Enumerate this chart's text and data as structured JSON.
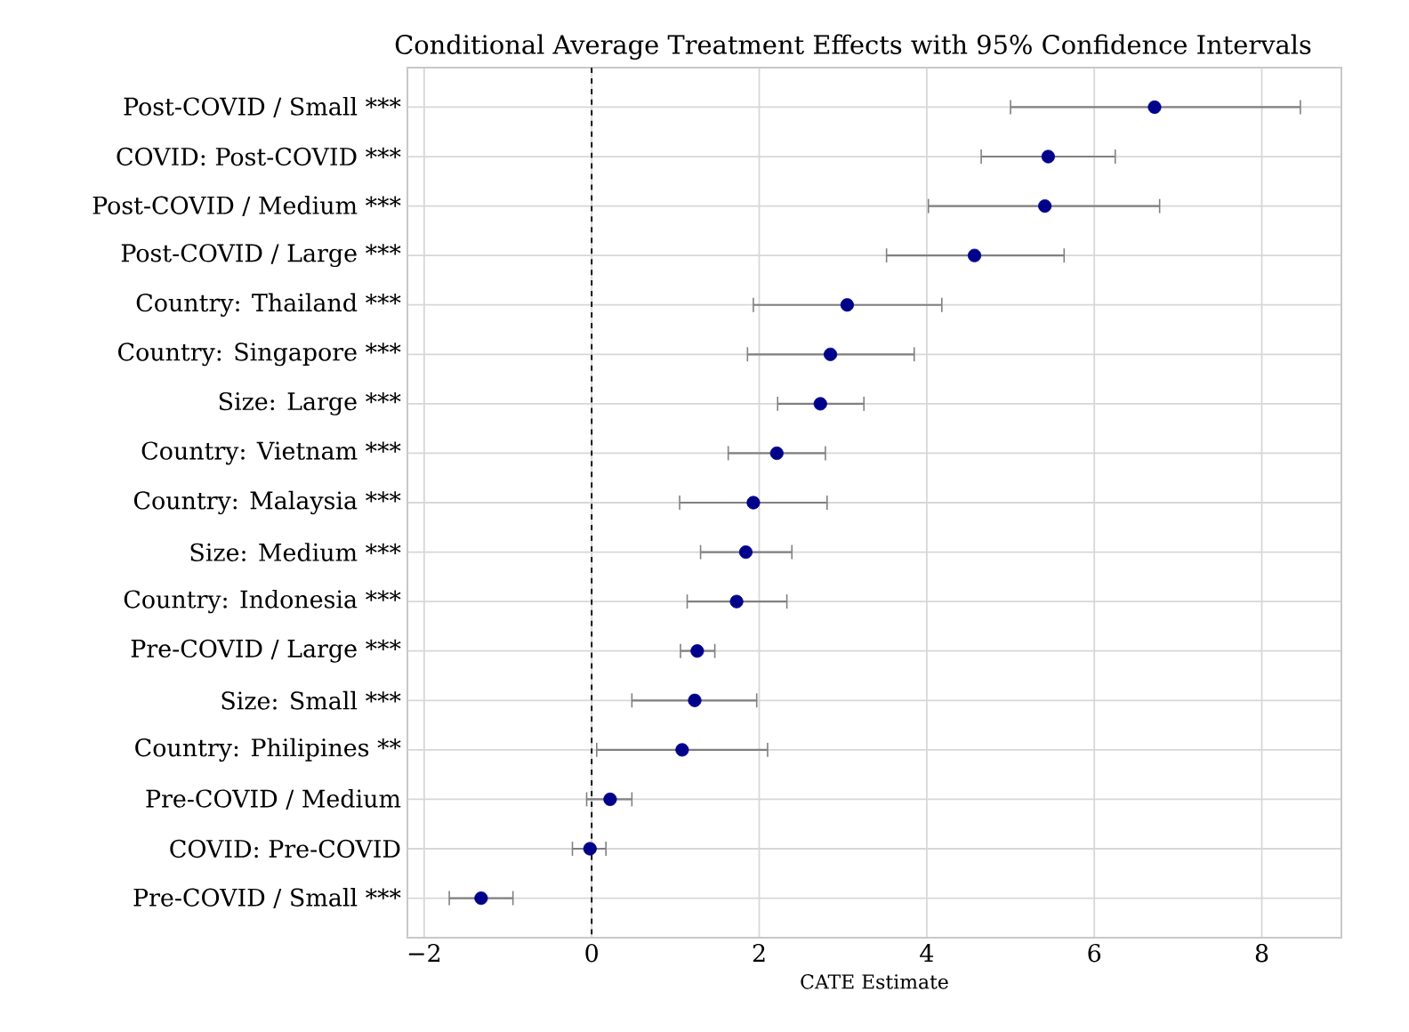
{
  "chart_data": {
    "type": "scatter",
    "orientation": "horizontal",
    "title": "Conditional Average Treatment Effects with 95% Confidence Intervals",
    "xlabel": "CATE Estimate",
    "categories": [
      "Post-COVID / Small ***",
      "COVID: Post-COVID ***",
      "Post-COVID / Medium ***",
      "Post-COVID / Large ***",
      "Country: Thailand ***",
      "Country: Singapore ***",
      "Size: Large ***",
      "Country: Vietnam ***",
      "Country: Malaysia ***",
      "Size: Medium ***",
      "Country: Indonesia ***",
      "Pre-COVID / Large ***",
      "Size: Small ***",
      "Country: Philipines **",
      "Pre-COVID / Medium",
      "COVID: Pre-COVID",
      "Pre-COVID / Small ***"
    ],
    "series": [
      {
        "color": "#00008b",
        "values": [
          6.72,
          5.45,
          5.41,
          4.57,
          3.05,
          2.85,
          2.73,
          2.21,
          1.93,
          1.84,
          1.73,
          1.26,
          1.23,
          1.08,
          0.22,
          -0.02,
          -1.32
        ],
        "errors": [
          [
            5.0,
            8.46
          ],
          [
            4.65,
            6.25
          ],
          [
            4.02,
            6.78
          ],
          [
            3.52,
            5.64
          ],
          [
            1.93,
            4.18
          ],
          [
            1.86,
            3.85
          ],
          [
            2.22,
            3.25
          ],
          [
            1.63,
            2.79
          ],
          [
            1.05,
            2.81
          ],
          [
            1.3,
            2.39
          ],
          [
            1.14,
            2.33
          ],
          [
            1.06,
            1.47
          ],
          [
            0.48,
            1.97
          ],
          [
            0.06,
            2.1
          ],
          [
            -0.06,
            0.48
          ],
          [
            -0.23,
            0.17
          ],
          [
            -1.7,
            -0.94
          ]
        ]
      }
    ],
    "xlim": [
      -2.2,
      8.95
    ],
    "xticks": [
      {
        "value": -2,
        "label": "−2"
      },
      0,
      2,
      4,
      6,
      8
    ],
    "ref_lines": [
      {
        "axis": "x",
        "value": 0,
        "color": "#000000",
        "line_style": "dashed"
      }
    ],
    "grid": true,
    "marker": "circle"
  }
}
